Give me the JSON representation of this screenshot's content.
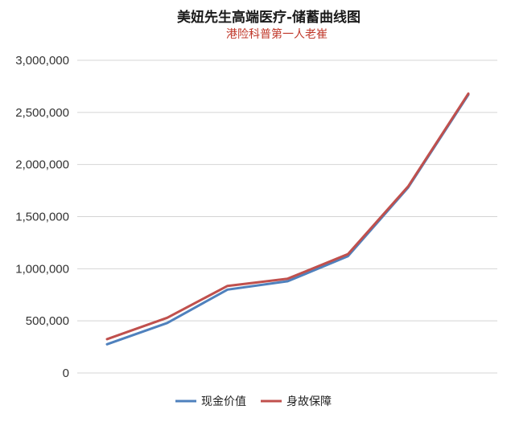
{
  "chart_data": {
    "type": "line",
    "title": "美妞先生高端医疗-储蓄曲线图",
    "subtitle": "港险科普第一人老崔",
    "xlabel": "",
    "ylabel": "",
    "ylim": [
      0,
      3000000
    ],
    "y_ticks": [
      0,
      500000,
      1000000,
      1500000,
      2000000,
      2500000,
      3000000
    ],
    "y_tick_labels": [
      "0",
      "500,000",
      "1,000,000",
      "1,500,000",
      "2,000,000",
      "2,500,000",
      "3,000,000"
    ],
    "grid": true,
    "legend_position": "bottom",
    "x": [
      1,
      2,
      3,
      4,
      5,
      6,
      7
    ],
    "series": [
      {
        "name": "现金价值",
        "color": "#4f81bd",
        "values": [
          275000,
          480000,
          800000,
          880000,
          1120000,
          1780000,
          2670000
        ]
      },
      {
        "name": "身故保障",
        "color": "#c0504d",
        "values": [
          325000,
          530000,
          835000,
          905000,
          1140000,
          1790000,
          2680000
        ]
      }
    ]
  }
}
